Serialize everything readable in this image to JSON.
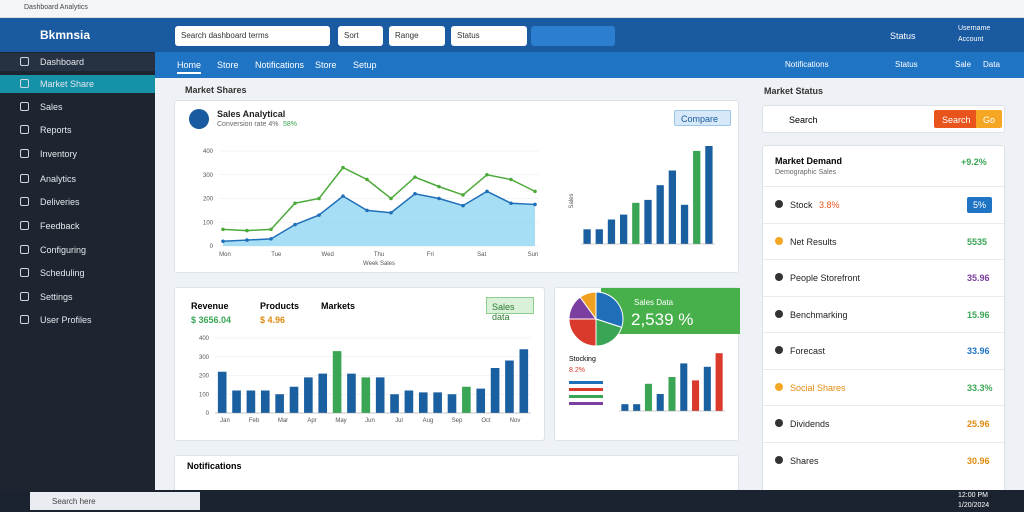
{
  "window": {
    "title": "Dashboard Analytics"
  },
  "header": {
    "brand": "Bkmnsia",
    "search": [
      "Search dashboard terms",
      "Sort",
      "Range",
      "Status"
    ],
    "status": "Status",
    "user": [
      "Username",
      "Account"
    ]
  },
  "nav": {
    "tabs": [
      "Home",
      "Store",
      "Notifications",
      "Store",
      "Setup"
    ],
    "right": [
      "Notifications",
      "Status",
      "Sale",
      "Data"
    ]
  },
  "sidebar": {
    "items": [
      "Dashboard",
      "Market Share",
      "Sales",
      "Reports",
      "Inventory",
      "Analytics",
      "Deliveries",
      "Feedback",
      "Configuring",
      "Scheduling",
      "Settings",
      "User Profiles"
    ]
  },
  "main": {
    "section": "Market Shares",
    "sales": {
      "title": "Sales Analytical",
      "subtitle": "Conversion rate 4%",
      "delta": "58%",
      "button": "Compare",
      "line": {
        "ylim": [
          0,
          400
        ],
        "yticks": [
          0,
          100,
          200,
          300,
          400
        ],
        "categories": [
          "Mon",
          "Tue",
          "Wed",
          "Thu",
          "Fri",
          "Sat",
          "Sun"
        ],
        "xlabel": "Week Sales",
        "series": [
          {
            "color": "#1f6fb8",
            "fill": "#8fd6f2",
            "values": [
              20,
              25,
              30,
              90,
              130,
              210,
              150,
              140,
              220,
              200,
              170,
              230,
              180,
              175
            ]
          },
          {
            "color": "#4caa3a",
            "values": [
              70,
              65,
              70,
              180,
              200,
              330,
              280,
              200,
              290,
              250,
              215,
              300,
              280,
              230
            ]
          }
        ]
      },
      "bars": {
        "ylim": [
          0,
          100
        ],
        "ylabel": "Sales",
        "values": [
          15,
          15,
          25,
          30,
          42,
          45,
          60,
          75,
          40,
          95,
          100
        ],
        "colors": [
          "#1a5fa0",
          "#1a5fa0",
          "#1a5fa0",
          "#1a5fa0",
          "#3aa655",
          "#1a5fa0",
          "#1a5fa0",
          "#1a5fa0",
          "#1a5fa0",
          "#3aa655",
          "#1a5fa0"
        ]
      }
    },
    "revenue": {
      "labels": [
        "Revenue",
        "Products",
        "Markets"
      ],
      "values": [
        "$ 3656.04",
        "$ 4.96"
      ],
      "badge": "Sales data",
      "bars": {
        "ylim": [
          0,
          400
        ],
        "yticks": [
          0,
          100,
          200,
          300,
          400
        ],
        "categories": [
          "Jan",
          "Feb",
          "Mar",
          "Apr",
          "May",
          "Jun",
          "Jul",
          "Aug",
          "Sep",
          "Oct",
          "Nov"
        ],
        "values": [
          220,
          120,
          120,
          120,
          100,
          140,
          190,
          210,
          330,
          210,
          190,
          190,
          100,
          120,
          110,
          110,
          100,
          140,
          130,
          240,
          280,
          340
        ],
        "colors": [
          "#1a5fa0",
          "#1a5fa0",
          "#1a5fa0",
          "#1a5fa0",
          "#1a5fa0",
          "#1a5fa0",
          "#1a5fa0",
          "#1a5fa0",
          "#3aa655",
          "#1a5fa0",
          "#3aa655",
          "#1a5fa0",
          "#1a5fa0",
          "#1a5fa0",
          "#1a5fa0",
          "#1a5fa0",
          "#1a5fa0",
          "#3aa655",
          "#1a5fa0",
          "#1a5fa0",
          "#1a5fa0",
          "#1a5fa0"
        ]
      }
    },
    "share": {
      "header": "Sales Data",
      "big": "2,539 %",
      "legend": "Stocking",
      "legend_value": "8.2%",
      "pie": {
        "values": [
          30,
          20,
          25,
          15,
          10
        ],
        "colors": [
          "#1f6fb8",
          "#3aa655",
          "#d93a2b",
          "#7b3fa0",
          "#f0a020"
        ]
      },
      "bars": {
        "ylim": [
          0,
          100
        ],
        "values": [
          10,
          10,
          40,
          25,
          50,
          70,
          45,
          65,
          85
        ],
        "colors": [
          "#1a5fa0",
          "#1a5fa0",
          "#3aa655",
          "#1a5fa0",
          "#3aa655",
          "#1a5fa0",
          "#d93a2b",
          "#1a5fa0",
          "#d93a2b"
        ]
      }
    },
    "notifications": "Notifications"
  },
  "right": {
    "title": "Market Status",
    "search": "Search",
    "buttons": [
      "Search",
      "Go"
    ],
    "card": {
      "title": "Market Demand",
      "delta": "+9.2%",
      "subtitle": "Demographic Sales",
      "rows": [
        {
          "label": "Stock",
          "value": "5%",
          "extra": "3.8%"
        },
        {
          "label": "Net Results",
          "value": "5535"
        },
        {
          "label": "People Storefront",
          "value": "35.96"
        },
        {
          "label": "Benchmarking",
          "value": "15.96"
        },
        {
          "label": "Forecast",
          "value": "33.96"
        },
        {
          "label": "Social Shares",
          "value": "33.3%"
        },
        {
          "label": "Dividends",
          "value": "25.96"
        },
        {
          "label": "Shares",
          "value": "30.96"
        }
      ]
    }
  },
  "taskbar": {
    "search": "Search here",
    "time": "12:00 PM",
    "date": "1/20/2024"
  }
}
